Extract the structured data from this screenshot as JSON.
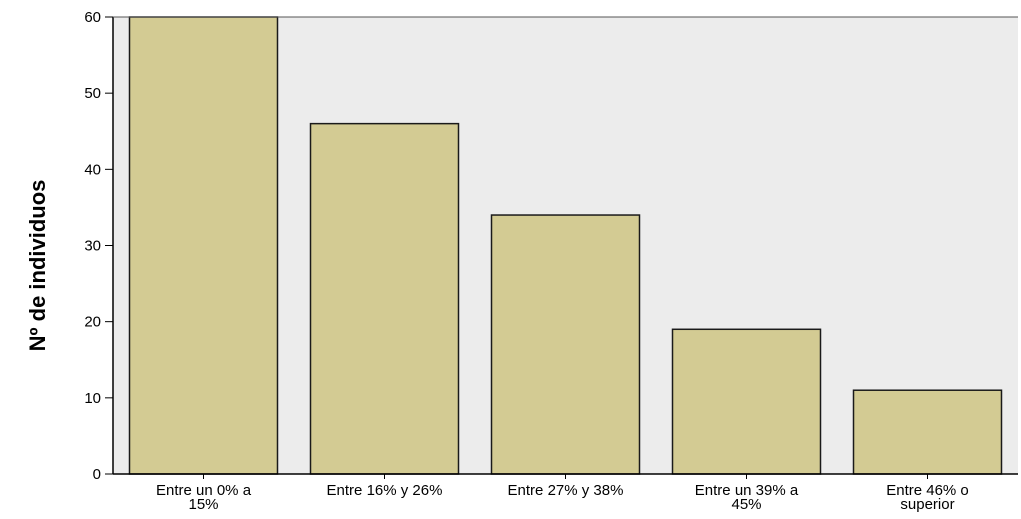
{
  "chart_data": {
    "type": "bar",
    "title": "",
    "xlabel": "",
    "ylabel": "Nº de individuos",
    "categories": [
      [
        "Entre un 0% a",
        "15%"
      ],
      [
        "Entre 16% y 26%"
      ],
      [
        "Entre 27% y 38%"
      ],
      [
        "Entre un 39% a",
        "45%"
      ],
      [
        "Entre 46% o",
        "superior"
      ]
    ],
    "values": [
      60,
      46,
      34,
      19,
      11
    ],
    "ylim": [
      0,
      60
    ],
    "yticks": [
      "0",
      "10",
      "20",
      "30",
      "40",
      "50",
      "60"
    ],
    "grid": false,
    "legend": "none",
    "colors": {
      "bar_fill": "#d3cb93",
      "bar_stroke": "#1a1a1a",
      "plot_background": "#ececec",
      "axis": "#000000"
    }
  }
}
